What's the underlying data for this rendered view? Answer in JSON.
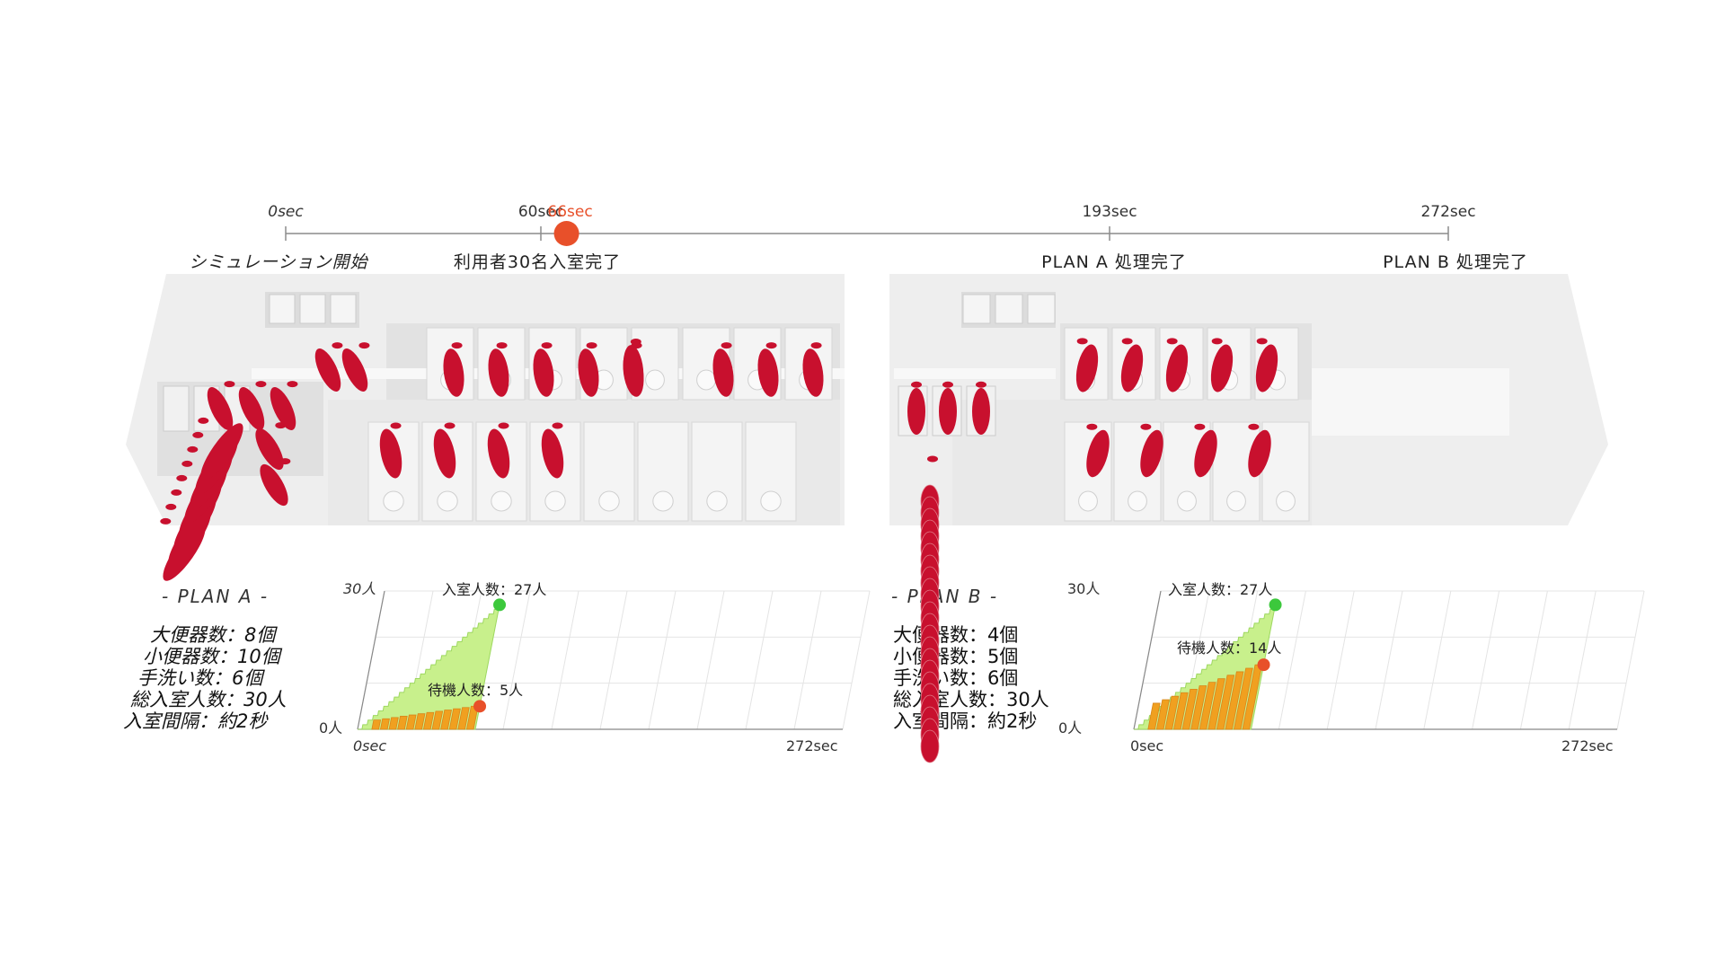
{
  "timeline": {
    "ticks": [
      {
        "label": "0sec",
        "caption": "シミュレーション開始",
        "italic": true
      },
      {
        "label": "60sec",
        "caption": "利用者30名入室完了",
        "italic": false
      },
      {
        "label": "193sec",
        "caption": "PLAN A 処理完了",
        "italic": false
      },
      {
        "label": "272sec",
        "caption": "PLAN B 処理完了",
        "italic": false
      }
    ],
    "current_label": "66sec",
    "current_value_sec": 66,
    "max_sec": 272,
    "marker_color": "#e8502a"
  },
  "plans": [
    {
      "title": "- PLAN A -",
      "specs": [
        "大便器数：8個",
        "小便器数：10個",
        "手洗い数：6個",
        "総入室人数：30人",
        "入室間隔：約2秒"
      ],
      "chart": {
        "y_top": "30人",
        "y_bottom": "0人",
        "x_start": "0sec",
        "x_end": "272sec",
        "entered_label": "入室人数：27人",
        "waiting_label": "待機人数：5人"
      }
    },
    {
      "title": "- PLAN B -",
      "specs": [
        "大便器数：4個",
        "小便器数：5個",
        "手洗い数：6個",
        "総入室人数：30人",
        "入室間隔：約2秒"
      ],
      "chart": {
        "y_top": "30人",
        "y_bottom": "0人",
        "x_start": "0sec",
        "x_end": "272sec",
        "entered_label": "入室人数：27人",
        "waiting_label": "待機人数：14人"
      }
    }
  ],
  "colors": {
    "person": "#c8102e",
    "entered_fill": "#c8f08c",
    "entered_dot": "#3cc83c",
    "waiting_fill": "#f0a020",
    "waiting_dot": "#e8502a",
    "room": "#e6e6e6"
  },
  "chart_data": [
    {
      "type": "area",
      "title": "",
      "xlabel": "",
      "ylabel": "",
      "xlim": [
        0,
        272
      ],
      "ylim": [
        0,
        30
      ],
      "series": [
        {
          "name": "入室人数",
          "x": [
            0,
            66
          ],
          "values": [
            0,
            27
          ]
        },
        {
          "name": "待機人数",
          "x": [
            0,
            20,
            40,
            66
          ],
          "values": [
            0,
            2,
            4,
            5
          ]
        }
      ]
    },
    {
      "type": "area",
      "title": "",
      "xlabel": "",
      "ylabel": "",
      "xlim": [
        0,
        272
      ],
      "ylim": [
        0,
        30
      ],
      "series": [
        {
          "name": "入室人数",
          "x": [
            0,
            66
          ],
          "values": [
            0,
            27
          ]
        },
        {
          "name": "待機人数",
          "x": [
            0,
            20,
            40,
            66
          ],
          "values": [
            0,
            6,
            10,
            14
          ]
        }
      ]
    }
  ]
}
